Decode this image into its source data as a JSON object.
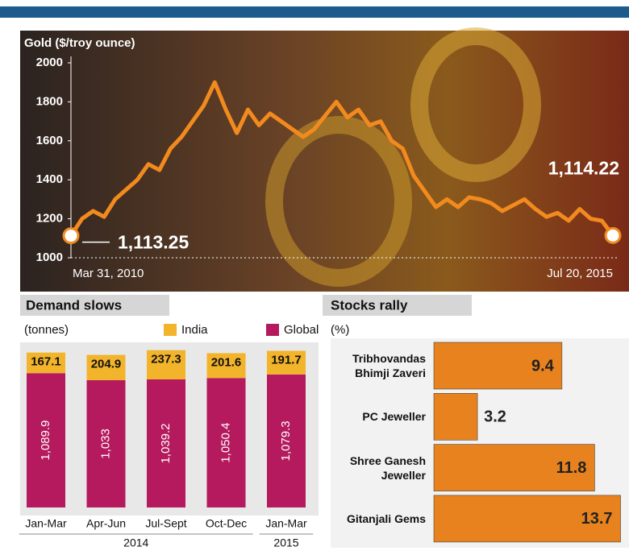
{
  "chart_data": [
    {
      "type": "line",
      "y_label": "Gold ($/troy ounce)",
      "categories": [
        "Mar 31, 2010",
        null,
        null,
        null,
        null,
        null,
        null,
        null,
        null,
        null,
        null,
        null,
        null,
        null,
        null,
        null,
        null,
        null,
        null,
        null,
        null,
        null,
        null,
        null,
        null,
        null,
        null,
        null,
        null,
        null,
        null,
        null,
        null,
        null,
        null,
        null,
        null,
        null,
        null,
        null,
        null,
        null,
        null,
        null,
        null,
        null,
        null,
        null,
        null,
        "Jul 20, 2015"
      ],
      "series": [
        {
          "color": "#f28a1e",
          "values": [
            1113.25,
            1200,
            1240,
            1210,
            1300,
            1350,
            1400,
            1480,
            1450,
            1560,
            1620,
            1700,
            1780,
            1900,
            1760,
            1640,
            1760,
            1680,
            1740,
            1700,
            1660,
            1620,
            1660,
            1730,
            1800,
            1720,
            1760,
            1680,
            1700,
            1600,
            1560,
            1420,
            1340,
            1260,
            1300,
            1260,
            1310,
            1300,
            1280,
            1240,
            1270,
            1300,
            1250,
            1210,
            1230,
            1190,
            1250,
            1200,
            1190,
            1114.22
          ],
          "value_labels": [
            "1,113.25",
            null,
            null,
            null,
            null,
            null,
            null,
            null,
            null,
            null,
            null,
            null,
            null,
            null,
            null,
            null,
            null,
            null,
            null,
            null,
            null,
            null,
            null,
            null,
            null,
            null,
            null,
            null,
            null,
            null,
            null,
            null,
            null,
            null,
            null,
            null,
            null,
            null,
            null,
            null,
            null,
            null,
            null,
            null,
            null,
            null,
            null,
            null,
            null,
            "1,114.22"
          ]
        }
      ],
      "ylim": [
        1000,
        2000
      ],
      "yticks": [
        1000,
        1200,
        1400,
        1600,
        1800,
        2000
      ]
    },
    {
      "type": "stacked-bar",
      "title": "Demand slows",
      "unit_label": "(tonnes)",
      "categories": [
        "Jan-Mar",
        "Apr-Jun",
        "Jul-Sept",
        "Oct-Dec",
        "Jan-Mar"
      ],
      "groups": [
        {
          "label": "2014",
          "size": 4
        },
        {
          "label": "2015",
          "size": 1
        }
      ],
      "series": [
        {
          "name": "Global",
          "color": "#b41a5d",
          "values": [
            1089.9,
            1033,
            1039.2,
            1050.4,
            1079.3
          ],
          "value_labels": [
            "1,089.9",
            "1,033",
            "1,039.2",
            "1,050.4",
            "1,079.3"
          ]
        },
        {
          "name": "India",
          "color": "#f2b42a",
          "values": [
            167.1,
            204.9,
            237.3,
            201.6,
            191.7
          ]
        }
      ],
      "legend": "top-right"
    },
    {
      "type": "hbar",
      "title": "Stocks rally",
      "unit_label": "(%)",
      "categories": [
        "Tribhovandas Bhimji Zaveri",
        "PC Jeweller",
        "Shree Ganesh Jeweller",
        "Gitanjali Gems"
      ],
      "values": [
        9.4,
        3.2,
        11.8,
        13.7
      ],
      "color": "#e8821e"
    }
  ]
}
